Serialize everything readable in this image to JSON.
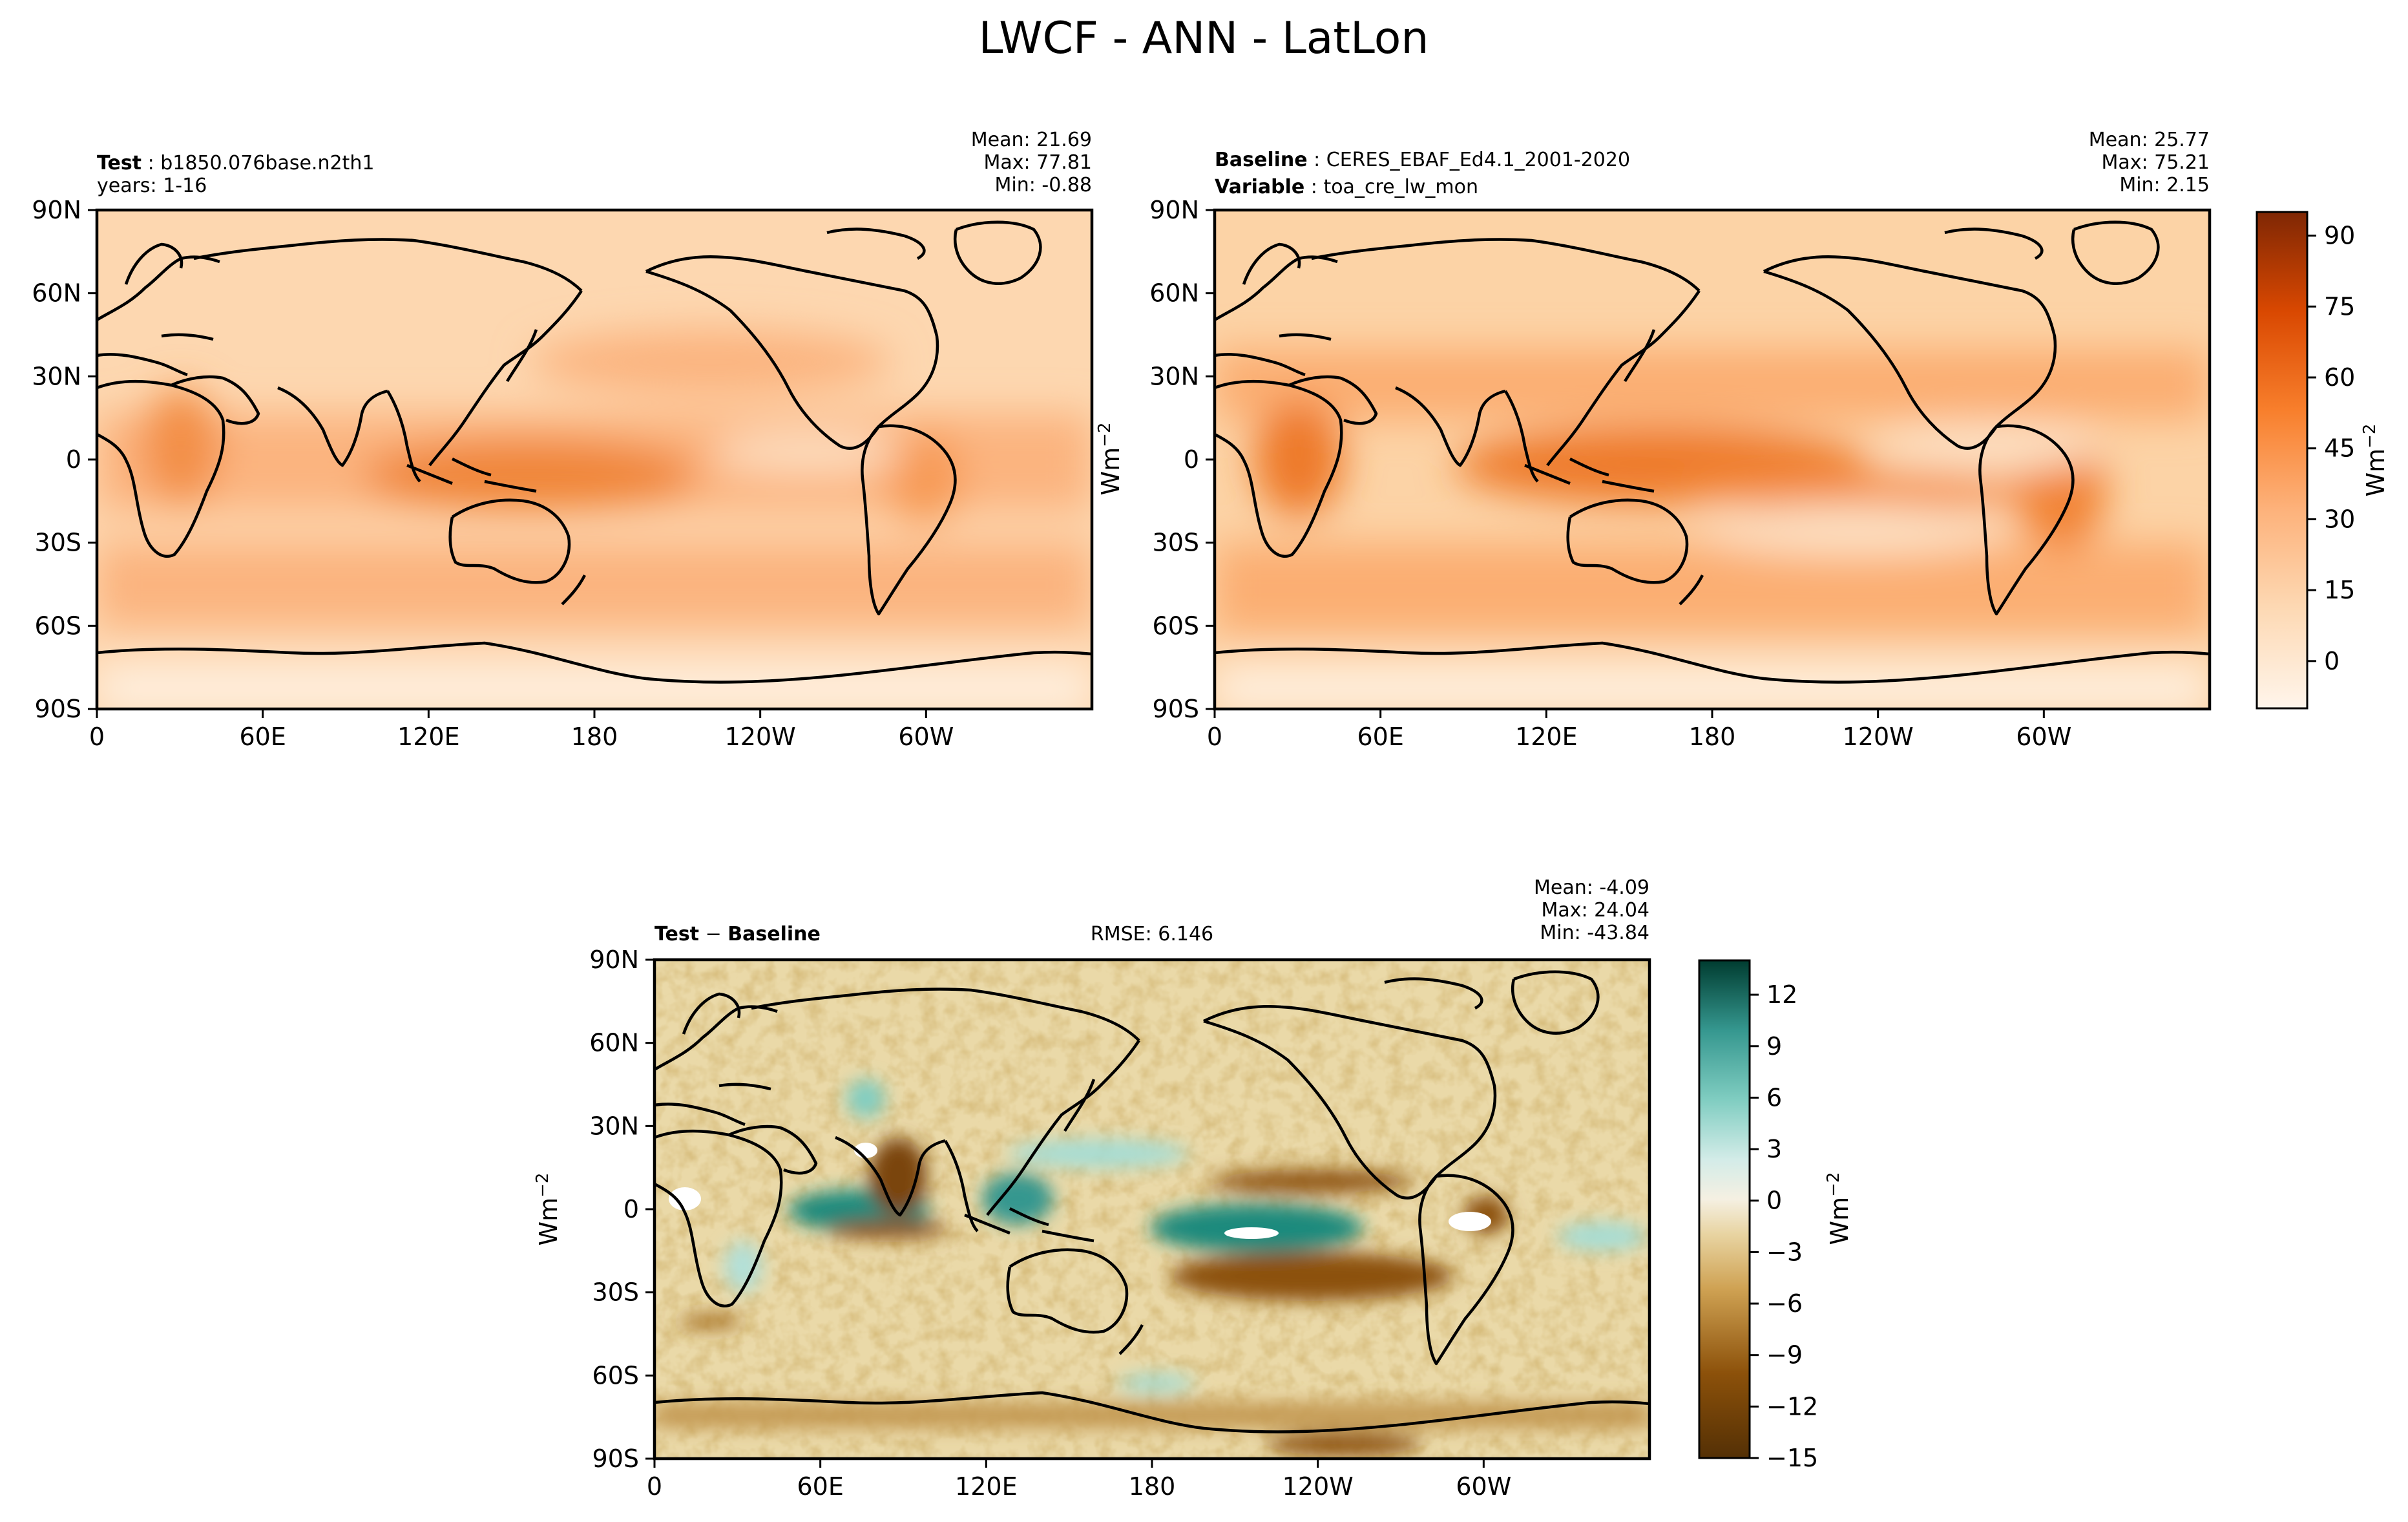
{
  "title": "LWCF - ANN - LatLon",
  "chart_data": [
    {
      "type": "heatmap",
      "panel": "test",
      "label_bold": "Test",
      "label_text": "b1850.076base.n2th1",
      "label2_bold": "",
      "label2_text": "years: 1-16",
      "stats": [
        "Mean: 21.69",
        "Max: 77.81",
        "Min: -0.88"
      ],
      "mean": 21.69,
      "max": 77.81,
      "min": -0.88,
      "colormap": "Oranges",
      "xticks": [
        "0",
        "60E",
        "120E",
        "180",
        "120W",
        "60W"
      ],
      "yticks": [
        "90N",
        "60N",
        "30N",
        "0",
        "30S",
        "60S",
        "90S"
      ],
      "xlim": [
        0,
        360
      ],
      "ylim": [
        -90,
        90
      ]
    },
    {
      "type": "heatmap",
      "panel": "baseline",
      "label_bold": "Baseline",
      "label_text": "CERES_EBAF_Ed4.1_2001-2020",
      "label2_bold": "Variable",
      "label2_text": "toa_cre_lw_mon",
      "stats": [
        "Mean: 25.77",
        "Max: 75.21",
        "Min:  2.15"
      ],
      "mean": 25.77,
      "max": 75.21,
      "min": 2.15,
      "colormap": "Oranges",
      "xticks": [
        "0",
        "60E",
        "120E",
        "180",
        "120W",
        "60W"
      ],
      "yticks": [
        "90N",
        "60N",
        "30N",
        "0",
        "30S",
        "60S",
        "90S"
      ],
      "xlim": [
        0,
        360
      ],
      "ylim": [
        -90,
        90
      ],
      "colorbar": {
        "label": "Wm",
        "label_sup": "−2",
        "ticks": [
          "90",
          "75",
          "60",
          "45",
          "30",
          "15",
          "0"
        ],
        "tick_values": [
          90,
          75,
          60,
          45,
          30,
          15,
          0
        ],
        "range": [
          -10,
          95
        ]
      }
    },
    {
      "type": "heatmap",
      "panel": "difference",
      "label_bold": "Test",
      "label_mid": " − ",
      "label_bold2": "Baseline",
      "rmse_text": "RMSE: 6.146",
      "rmse": 6.146,
      "stats": [
        "Mean: -4.09",
        "Max: 24.04",
        "Min: -43.84"
      ],
      "mean": -4.09,
      "max": 24.04,
      "min": -43.84,
      "colormap": "BrBG",
      "xticks": [
        "0",
        "60E",
        "120E",
        "180",
        "120W",
        "60W"
      ],
      "yticks": [
        "90N",
        "60N",
        "30N",
        "0",
        "30S",
        "60S",
        "90S"
      ],
      "xlim": [
        0,
        360
      ],
      "ylim": [
        -90,
        90
      ],
      "side_label": "Wm",
      "side_label_sup": "−2",
      "colorbar": {
        "label": "Wm",
        "label_sup": "−2",
        "ticks": [
          "12",
          "9",
          "6",
          "3",
          "0",
          "−3",
          "−6",
          "−9",
          "−12",
          "−15"
        ],
        "tick_values": [
          12,
          9,
          6,
          3,
          0,
          -3,
          -6,
          -9,
          -12,
          -15
        ],
        "range": [
          -15,
          14
        ]
      }
    }
  ],
  "side_label_top": "Wm",
  "side_label_top_sup": "−2"
}
